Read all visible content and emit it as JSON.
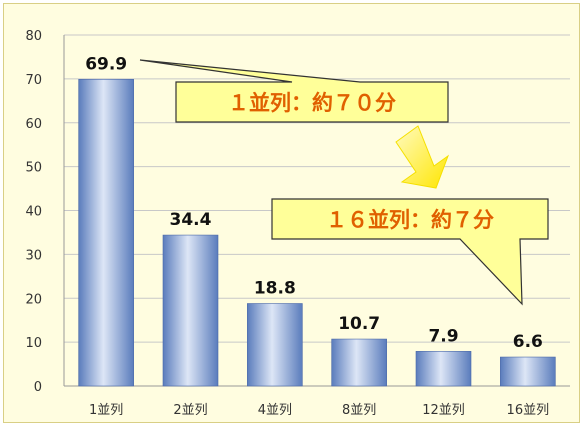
{
  "chart_data": {
    "type": "bar",
    "title": "",
    "xlabel": "",
    "ylabel": "",
    "categories": [
      "1並列",
      "2並列",
      "4並列",
      "8並列",
      "12並列",
      "16並列"
    ],
    "values": [
      69.9,
      34.4,
      18.8,
      10.7,
      7.9,
      6.6
    ],
    "data_labels": [
      "69.9",
      "34.4",
      "18.8",
      "10.7",
      "7.9",
      "6.6"
    ],
    "ylim": [
      0,
      80
    ],
    "yticks": [
      0,
      10,
      20,
      30,
      40,
      50,
      60,
      70,
      80
    ],
    "grid": "horizontal",
    "legend": "none",
    "colors": {
      "frame_bg": "#fffde0",
      "frame_border": "#d9cf85",
      "bar_dark": "#5a7cbc",
      "bar_light": "#dde6f6",
      "callout_fill": "#ffff99",
      "callout_border": "#333333",
      "callout_text": "#e06000",
      "arrow": "#ffef30"
    },
    "annotations": [
      {
        "text": "１並列：約７０分",
        "target_category": "1並列"
      },
      {
        "text": "１６並列：約７分",
        "target_category": "16並列"
      }
    ],
    "arrow_between_annotations": "down-arrow-icon"
  }
}
